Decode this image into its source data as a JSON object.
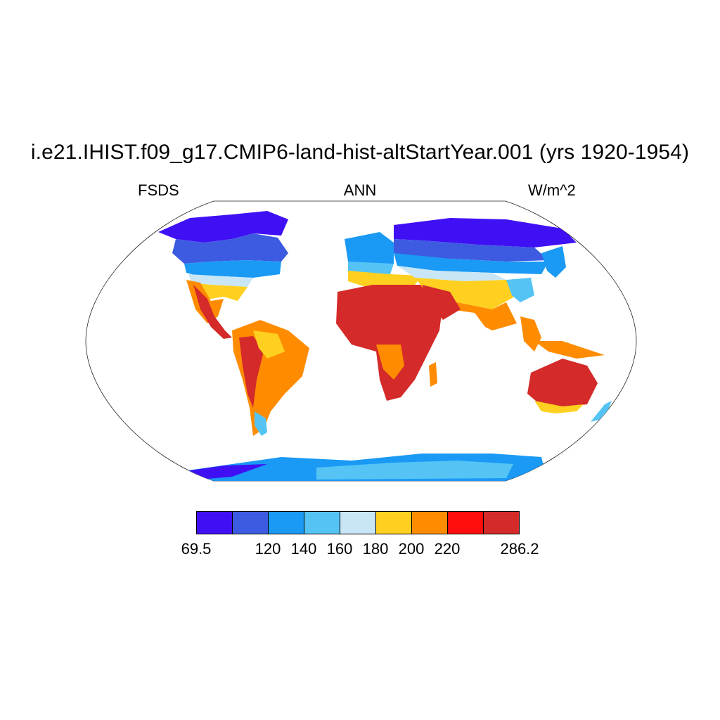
{
  "title": "i.e21.IHIST.f09_g17.CMIP6-land-hist-altStartYear.001 (yrs 1920-1954)",
  "left_label": "FSDS",
  "center_label": "ANN",
  "right_label": "W/m^2",
  "colorbar": {
    "colors": [
      "#4010f5",
      "#3d5be0",
      "#1a99f5",
      "#55c4f5",
      "#c8e6f5",
      "#ffd020",
      "#ff8c00",
      "#ff0d0d",
      "#d42a2a"
    ],
    "tick_labels": [
      "69.5",
      "120",
      "140",
      "160",
      "180",
      "200",
      "220",
      "286.2"
    ]
  }
}
